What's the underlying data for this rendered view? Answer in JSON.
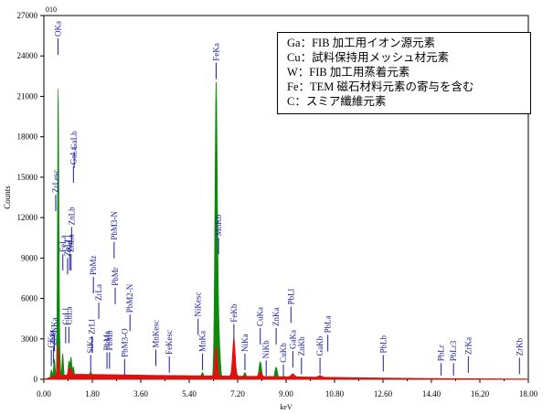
{
  "chart_data": {
    "type": "line",
    "title": "",
    "corner_label": "010",
    "xlabel": "keV",
    "ylabel": "Counts",
    "xlim": [
      0,
      18
    ],
    "ylim": [
      0,
      27000
    ],
    "xticks": [
      0.0,
      1.8,
      3.6,
      5.4,
      7.2,
      9.0,
      10.8,
      12.6,
      14.4,
      16.2,
      18.0
    ],
    "xtick_labels": [
      "0.00",
      "1.80",
      "3.60",
      "5.40",
      "7.20",
      "9.00",
      "10.80",
      "12.60",
      "14.40",
      "16.20",
      "18.00"
    ],
    "yticks": [
      0,
      3000,
      6000,
      9000,
      12000,
      15000,
      18000,
      21000,
      24000,
      27000
    ],
    "ytick_labels": [
      "0",
      "3000",
      "6000",
      "9000",
      "12000",
      "15000",
      "18000",
      "21000",
      "24000",
      "27000"
    ],
    "colors": {
      "green": "#0d8a0d",
      "red": "#e01010",
      "marker": "#1a1aa0",
      "axis": "#000000"
    },
    "series": [
      {
        "color": "green",
        "peaks": [
          {
            "x": 0.28,
            "h": 700,
            "w": 0.03
          },
          {
            "x": 0.39,
            "h": 1500,
            "w": 0.03
          },
          {
            "x": 0.53,
            "h": 20500,
            "w": 0.025
          },
          {
            "x": 0.57,
            "h": 3000,
            "w": 0.03
          },
          {
            "x": 0.7,
            "h": 1900,
            "w": 0.03
          },
          {
            "x": 0.93,
            "h": 1300,
            "w": 0.03
          },
          {
            "x": 1.01,
            "h": 1600,
            "w": 0.03
          },
          {
            "x": 1.1,
            "h": 900,
            "w": 0.03
          },
          {
            "x": 1.74,
            "h": 600,
            "w": 0.04
          },
          {
            "x": 2.34,
            "h": 350,
            "w": 0.05
          },
          {
            "x": 5.89,
            "h": 500,
            "w": 0.05
          },
          {
            "x": 6.4,
            "h": 21800,
            "w": 0.045
          },
          {
            "x": 6.5,
            "h": 3000,
            "w": 0.05
          },
          {
            "x": 7.06,
            "h": 1600,
            "w": 0.05
          },
          {
            "x": 7.47,
            "h": 500,
            "w": 0.05
          },
          {
            "x": 8.04,
            "h": 1300,
            "w": 0.05
          },
          {
            "x": 8.63,
            "h": 900,
            "w": 0.05
          },
          {
            "x": 8.91,
            "h": 250,
            "w": 0.05
          }
        ]
      },
      {
        "color": "red",
        "peaks": [
          {
            "x": 0.53,
            "h": 2300,
            "w": 0.03
          },
          {
            "x": 0.93,
            "h": 500,
            "w": 0.03
          },
          {
            "x": 1.01,
            "h": 500,
            "w": 0.03
          },
          {
            "x": 6.4,
            "h": 2200,
            "w": 0.045
          },
          {
            "x": 7.06,
            "h": 2800,
            "w": 0.05
          },
          {
            "x": 8.04,
            "h": 350,
            "w": 0.05
          },
          {
            "x": 9.25,
            "h": 220,
            "w": 0.06
          },
          {
            "x": 10.26,
            "h": 120,
            "w": 0.06
          }
        ],
        "background": [
          [
            0.0,
            0
          ],
          [
            0.4,
            250
          ],
          [
            1.2,
            380
          ],
          [
            2.5,
            350
          ],
          [
            4.0,
            300
          ],
          [
            6.0,
            260
          ],
          [
            8.0,
            220
          ],
          [
            10.0,
            170
          ],
          [
            12.0,
            110
          ],
          [
            14.0,
            70
          ],
          [
            16.0,
            45
          ],
          [
            18.0,
            25
          ]
        ]
      }
    ],
    "markers": [
      {
        "label": "CKa",
        "x": 0.277,
        "top": 2200
      },
      {
        "label": "ZrM",
        "x": 0.36,
        "top": 2400
      },
      {
        "label": "OKa",
        "x": 0.525,
        "top": 25300
      },
      {
        "label": "ZrLesc",
        "x": 0.44,
        "top": 13700
      },
      {
        "label": "NKa",
        "x": 0.392,
        "top": 3300
      },
      {
        "label": "GaLl",
        "x": 0.957,
        "top": 9300
      },
      {
        "label": "CuLl",
        "x": 0.81,
        "top": 3900
      },
      {
        "label": "CuLa",
        "x": 0.93,
        "top": 3900
      },
      {
        "label": "ZnLl",
        "x": 0.88,
        "top": 9000
      },
      {
        "label": "ZnLa",
        "x": 1.01,
        "top": 9300
      },
      {
        "label": "ZnLb",
        "x": 1.03,
        "top": 11300
      },
      {
        "label": "FeLa",
        "x": 0.705,
        "top": 9300
      },
      {
        "label": "GaLa",
        "x": 1.098,
        "top": 15800
      },
      {
        "label": "GaLb",
        "x": 1.125,
        "top": 16900
      },
      {
        "label": "SiKa",
        "x": 1.74,
        "top": 1800
      },
      {
        "label": "ZrLl",
        "x": 1.79,
        "top": 3200
      },
      {
        "label": "ZrLa",
        "x": 2.04,
        "top": 5700
      },
      {
        "label": "PbMz",
        "x": 1.84,
        "top": 7600
      },
      {
        "label": "PbMa",
        "x": 2.345,
        "top": 2000
      },
      {
        "label": "PbMb",
        "x": 2.44,
        "top": 2000
      },
      {
        "label": "PbMr",
        "x": 2.65,
        "top": 6800
      },
      {
        "label": "PbM3-N",
        "x": 2.61,
        "top": 10200
      },
      {
        "label": "PbM3-O",
        "x": 3.0,
        "top": 1500
      },
      {
        "label": "PbM2-N",
        "x": 3.2,
        "top": 4800
      },
      {
        "label": "MnKesc",
        "x": 4.16,
        "top": 2200
      },
      {
        "label": "FeKesc",
        "x": 4.66,
        "top": 1700
      },
      {
        "label": "MnKa",
        "x": 5.895,
        "top": 1900
      },
      {
        "label": "NiKesc",
        "x": 5.73,
        "top": 4500
      },
      {
        "label": "FeKa",
        "x": 6.4,
        "top": 23500
      },
      {
        "label": "MnKb",
        "x": 6.49,
        "top": 10500
      },
      {
        "label": "FeKb",
        "x": 7.06,
        "top": 4100
      },
      {
        "label": "NiKa",
        "x": 7.47,
        "top": 1900
      },
      {
        "label": "NiKb",
        "x": 8.26,
        "top": 1400
      },
      {
        "label": "CuKa",
        "x": 8.04,
        "top": 3800
      },
      {
        "label": "CuKb",
        "x": 8.9,
        "top": 1100
      },
      {
        "label": "ZnKa",
        "x": 8.63,
        "top": 3800
      },
      {
        "label": "GaKa",
        "x": 9.25,
        "top": 2100
      },
      {
        "label": "ZnKb",
        "x": 9.57,
        "top": 1600
      },
      {
        "label": "PbLl",
        "x": 9.18,
        "top": 5400
      },
      {
        "label": "GaKb",
        "x": 10.26,
        "top": 1600
      },
      {
        "label": "PbLa",
        "x": 10.55,
        "top": 3300
      },
      {
        "label": "PbLb",
        "x": 12.61,
        "top": 1800
      },
      {
        "label": "PbLr",
        "x": 14.76,
        "top": 1200
      },
      {
        "label": "PbLr3",
        "x": 15.22,
        "top": 1200
      },
      {
        "label": "ZrKa",
        "x": 15.77,
        "top": 1700
      },
      {
        "label": "ZrKb",
        "x": 17.67,
        "top": 1600
      }
    ]
  },
  "legend": {
    "lines": [
      "Ga：FIB 加工用イオン源元素",
      "Cu：試料保持用メッシュ材元素",
      "W：FIB 加工用蒸着元素",
      "Fe：TEM 磁石材料元素の寄与を含む",
      "C：スミア纖維元素"
    ]
  }
}
